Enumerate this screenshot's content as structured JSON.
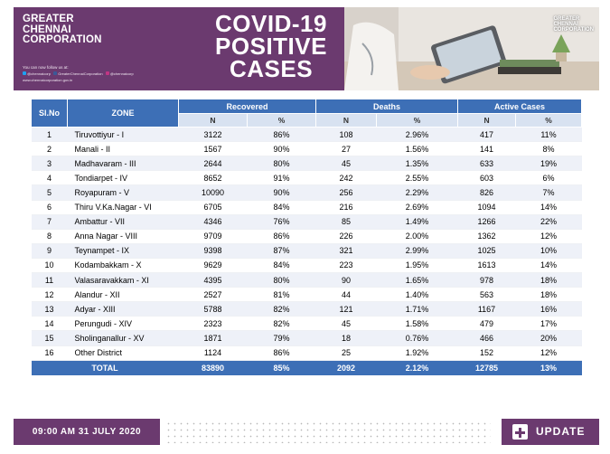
{
  "header": {
    "org_lines": [
      "GREATER",
      "CHENNAI",
      "CORPORATION"
    ],
    "title_lines": [
      "COVID-19",
      "POSITIVE",
      "CASES"
    ],
    "follow_text": "You can now follow us at:",
    "socials": [
      "@chennaicorp",
      "GreaterChennaiCorporation",
      "@chennaicorp"
    ],
    "website": "www.chennaicorporation.gov.in",
    "logo_lines": [
      "GREATER",
      "CHENNAI",
      "CORPORATION"
    ]
  },
  "table": {
    "headers": {
      "slno": "Sl.No",
      "zone": "ZONE",
      "recovered": "Recovered",
      "deaths": "Deaths",
      "active": "Active Cases",
      "n": "N",
      "pct": "%"
    },
    "rows": [
      [
        "1",
        "Tiruvottiyur - I",
        "3122",
        "86%",
        "108",
        "2.96%",
        "417",
        "11%"
      ],
      [
        "2",
        "Manali - II",
        "1567",
        "90%",
        "27",
        "1.56%",
        "141",
        "8%"
      ],
      [
        "3",
        "Madhavaram - III",
        "2644",
        "80%",
        "45",
        "1.35%",
        "633",
        "19%"
      ],
      [
        "4",
        "Tondiarpet - IV",
        "8652",
        "91%",
        "242",
        "2.55%",
        "603",
        "6%"
      ],
      [
        "5",
        "Royapuram - V",
        "10090",
        "90%",
        "256",
        "2.29%",
        "826",
        "7%"
      ],
      [
        "6",
        "Thiru V.Ka.Nagar - VI",
        "6705",
        "84%",
        "216",
        "2.69%",
        "1094",
        "14%"
      ],
      [
        "7",
        "Ambattur - VII",
        "4346",
        "76%",
        "85",
        "1.49%",
        "1266",
        "22%"
      ],
      [
        "8",
        "Anna Nagar - VIII",
        "9709",
        "86%",
        "226",
        "2.00%",
        "1362",
        "12%"
      ],
      [
        "9",
        "Teynampet - IX",
        "9398",
        "87%",
        "321",
        "2.99%",
        "1025",
        "10%"
      ],
      [
        "10",
        "Kodambakkam - X",
        "9629",
        "84%",
        "223",
        "1.95%",
        "1613",
        "14%"
      ],
      [
        "11",
        "Valasaravakkam - XI",
        "4395",
        "80%",
        "90",
        "1.65%",
        "978",
        "18%"
      ],
      [
        "12",
        "Alandur - XII",
        "2527",
        "81%",
        "44",
        "1.40%",
        "563",
        "18%"
      ],
      [
        "13",
        "Adyar - XIII",
        "5788",
        "82%",
        "121",
        "1.71%",
        "1167",
        "16%"
      ],
      [
        "14",
        "Perungudi - XIV",
        "2323",
        "82%",
        "45",
        "1.58%",
        "479",
        "17%"
      ],
      [
        "15",
        "Sholinganallur - XV",
        "1871",
        "79%",
        "18",
        "0.76%",
        "466",
        "20%"
      ],
      [
        "16",
        "Other District",
        "1124",
        "86%",
        "25",
        "1.92%",
        "152",
        "12%"
      ]
    ],
    "total": [
      "TOTAL",
      "83890",
      "85%",
      "2092",
      "2.12%",
      "12785",
      "13%"
    ]
  },
  "footer": {
    "datetime": "09:00 AM 31 JULY 2020",
    "update_label": "UPDATE"
  },
  "colors": {
    "brand_purple": "#6b3a6f",
    "header_blue": "#3d6fb6",
    "subheader": "#d8e2f1"
  }
}
